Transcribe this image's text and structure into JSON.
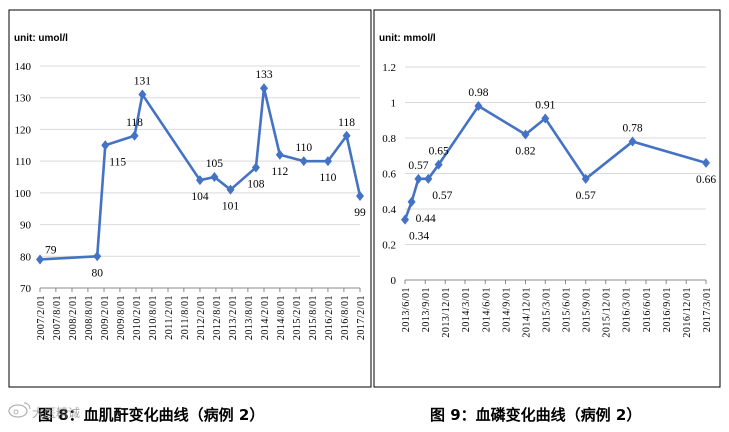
{
  "chart_data": [
    {
      "type": "line",
      "title": "",
      "unit_label": "unit: umol/l",
      "caption": "图 8：血肌酐变化曲线（病例 2）",
      "ylim": [
        70,
        140
      ],
      "yticks": [
        70,
        80,
        90,
        100,
        110,
        120,
        130,
        140
      ],
      "xticks": [
        "2007/2/01",
        "2007/8/01",
        "2008/2/01",
        "2008/8/01",
        "2009/2/01",
        "2009/8/01",
        "2010/2/01",
        "2010/8/01",
        "2011/2/01",
        "2011/8/01",
        "2012/2/01",
        "2012/8/01",
        "2013/2/01",
        "2013/8/01",
        "2014/2/01",
        "2014/8/01",
        "2015/2/01",
        "2015/8/01",
        "2016/2/01",
        "2016/8/01",
        "2017/2/01"
      ],
      "grid": "horizontal",
      "series": [
        {
          "color": "#4472c4",
          "points": [
            {
              "x": "2007/2/01",
              "y": 79,
              "label": "79",
              "pos": "right"
            },
            {
              "x": "2008/11/15",
              "y": 80,
              "label": "80",
              "pos": "below"
            },
            {
              "x": "2009/2/15",
              "y": 115,
              "label": "115",
              "pos": "below-right"
            },
            {
              "x": "2010/1/15",
              "y": 118,
              "label": "118",
              "pos": "above"
            },
            {
              "x": "2010/4/15",
              "y": 131,
              "label": "131",
              "pos": "above"
            },
            {
              "x": "2012/2/01",
              "y": 104,
              "label": "104",
              "pos": "below"
            },
            {
              "x": "2012/7/15",
              "y": 105,
              "label": "105",
              "pos": "above"
            },
            {
              "x": "2013/1/15",
              "y": 101,
              "label": "101",
              "pos": "below"
            },
            {
              "x": "2013/11/01",
              "y": 108,
              "label": "108",
              "pos": "below"
            },
            {
              "x": "2014/2/01",
              "y": 133,
              "label": "133",
              "pos": "above"
            },
            {
              "x": "2014/8/01",
              "y": 112,
              "label": "112",
              "pos": "below"
            },
            {
              "x": "2015/5/01",
              "y": 110,
              "label": "110",
              "pos": "above"
            },
            {
              "x": "2016/2/01",
              "y": 110,
              "label": "110",
              "pos": "below"
            },
            {
              "x": "2016/9/01",
              "y": 118,
              "label": "118",
              "pos": "above"
            },
            {
              "x": "2017/2/01",
              "y": 99,
              "label": "99",
              "pos": "below"
            }
          ]
        }
      ]
    },
    {
      "type": "line",
      "title": "",
      "unit_label": "unit: mmol/l",
      "caption": "图 9：血磷变化曲线（病例 2）",
      "ylim": [
        0,
        1.2
      ],
      "yticks": [
        "0",
        "0.2",
        "0.4",
        "0.6",
        "0.8",
        "1",
        "1.2"
      ],
      "xticks": [
        "2013/6/01",
        "2013/9/01",
        "2013/12/01",
        "2014/3/01",
        "2014/6/01",
        "2014/9/01",
        "2014/12/01",
        "2015/3/01",
        "2015/6/01",
        "2015/9/01",
        "2015/12/01",
        "2016/3/01",
        "2016/6/01",
        "2016/9/01",
        "2016/12/01",
        "2017/3/01"
      ],
      "grid": "horizontal",
      "series": [
        {
          "color": "#4472c4",
          "points": [
            {
              "x": "2013/6/01",
              "y": 0.34,
              "label": "0.34",
              "pos": "below-right"
            },
            {
              "x": "2013/7/01",
              "y": 0.44,
              "label": "0.44",
              "pos": "below-right"
            },
            {
              "x": "2013/8/01",
              "y": 0.57,
              "label": "0.57",
              "pos": "above"
            },
            {
              "x": "2013/9/15",
              "y": 0.57,
              "label": "0.57",
              "pos": "below-right"
            },
            {
              "x": "2013/11/01",
              "y": 0.65,
              "label": "0.65",
              "pos": "above"
            },
            {
              "x": "2014/5/01",
              "y": 0.98,
              "label": "0.98",
              "pos": "above"
            },
            {
              "x": "2014/12/01",
              "y": 0.82,
              "label": "0.82",
              "pos": "below"
            },
            {
              "x": "2015/3/01",
              "y": 0.91,
              "label": "0.91",
              "pos": "above"
            },
            {
              "x": "2015/9/01",
              "y": 0.57,
              "label": "0.57",
              "pos": "below"
            },
            {
              "x": "2016/4/01",
              "y": 0.78,
              "label": "0.78",
              "pos": "above"
            },
            {
              "x": "2017/3/01",
              "y": 0.66,
              "label": "0.66",
              "pos": "below"
            }
          ]
        }
      ]
    }
  ],
  "watermark": "大医精诚"
}
